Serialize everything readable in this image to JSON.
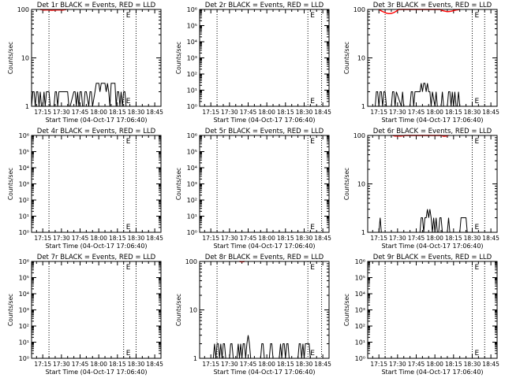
{
  "colors": {
    "events": "#000000",
    "lld": "#ff0000",
    "axes": "#000000",
    "background": "#ffffff"
  },
  "chart_data": [
    {
      "type": "line",
      "title": "Det 1r BLACK = Events, RED = LLD",
      "xlabel": "Start Time (04-Oct-17 17:06:40)",
      "ylabel": "Counts/sec",
      "yscale": "log",
      "ylim": [
        1,
        100
      ],
      "yticks": [
        "1",
        "10",
        "100"
      ],
      "xlim": [
        "17:06",
        "18:50"
      ],
      "xticks": [
        "17:15",
        "17:30",
        "17:45",
        "18:00",
        "18:15",
        "18:30",
        "18:45"
      ],
      "marker_label": "E",
      "vlines": [
        "17:20",
        "18:20",
        "18:30"
      ],
      "series": [
        {
          "name": "",
          "color": "events",
          "x": [
            "17:06",
            "17:07",
            "17:08",
            "17:09",
            "17:10",
            "17:11",
            "17:12",
            "17:13",
            "17:14",
            "17:15",
            "17:16",
            "17:17",
            "17:18",
            "17:19",
            "17:20",
            "17:21",
            "17:24",
            "17:25",
            "17:26",
            "17:27",
            "17:28",
            "17:29",
            "17:35",
            "17:36",
            "17:37",
            "17:40",
            "17:41",
            "17:42",
            "17:43",
            "17:44",
            "17:45",
            "17:46",
            "17:47",
            "17:48",
            "17:49",
            "17:50",
            "17:52",
            "17:53",
            "17:54",
            "17:55",
            "17:57",
            "17:58",
            "17:59",
            "18:00",
            "18:01",
            "18:02",
            "18:03",
            "18:04",
            "18:05",
            "18:06",
            "18:07",
            "18:08",
            "18:09",
            "18:10",
            "18:11",
            "18:12",
            "18:13",
            "18:14",
            "18:15",
            "18:16",
            "18:17",
            "18:18",
            "18:19",
            "18:20",
            "18:21",
            "18:22",
            "18:23",
            "18:24"
          ],
          "y": [
            1,
            2,
            2,
            1,
            2,
            2,
            1,
            2,
            1,
            1,
            2,
            1,
            2,
            2,
            2,
            1,
            1,
            2,
            2,
            1,
            2,
            2,
            2,
            1,
            1,
            2,
            2,
            1,
            2,
            1,
            2,
            2,
            1,
            1,
            2,
            2,
            1,
            2,
            2,
            1,
            2,
            3,
            3,
            3,
            2,
            3,
            3,
            3,
            3,
            2,
            3,
            2,
            1,
            3,
            3,
            3,
            3,
            1,
            2,
            2,
            1,
            2,
            1,
            2,
            2,
            1,
            1,
            1
          ]
        },
        {
          "name": "",
          "color": "lld",
          "x": [
            "17:13",
            "17:16",
            "17:19",
            "17:22",
            "17:25",
            "17:28",
            "17:31",
            "17:34"
          ],
          "y": [
            100,
            97,
            98,
            96,
            97,
            98,
            97,
            100
          ]
        }
      ]
    },
    {
      "type": "line",
      "title": "Det 2r BLACK = Events, RED = LLD",
      "xlabel": "Start Time (04-Oct-17 17:06:40)",
      "ylabel": "Counts/sec",
      "yscale": "log",
      "ylim": [
        1,
        1000000
      ],
      "yticks": [
        "10⁰",
        "10¹",
        "10²",
        "10³",
        "10⁴",
        "10⁵",
        "10⁶"
      ],
      "xlim": [
        "17:06",
        "18:50"
      ],
      "xticks": [
        "17:15",
        "17:30",
        "17:45",
        "18:00",
        "18:15",
        "18:30",
        "18:45"
      ],
      "marker_label": "E",
      "vlines": [
        "17:20",
        "18:33",
        "18:44"
      ],
      "series": []
    },
    {
      "type": "line",
      "title": "Det 3r BLACK = Events, RED = LLD",
      "xlabel": "Start Time (04-Oct-17 17:06:40)",
      "ylabel": "Counts/sec",
      "yscale": "log",
      "ylim": [
        1,
        100
      ],
      "yticks": [
        "1",
        "10",
        "100"
      ],
      "xlim": [
        "17:06",
        "18:50"
      ],
      "xticks": [
        "17:15",
        "17:30",
        "17:45",
        "18:00",
        "18:15",
        "18:30",
        "18:45"
      ],
      "marker_label": "E",
      "vlines": [
        "17:20",
        "18:30",
        "18:40"
      ],
      "series": [
        {
          "name": "",
          "color": "events",
          "x": [
            "17:12",
            "17:13",
            "17:14",
            "17:15",
            "17:16",
            "17:17",
            "17:18",
            "17:19",
            "17:20",
            "17:21",
            "17:25",
            "17:26",
            "17:27",
            "17:28",
            "17:29",
            "17:33",
            "17:34",
            "17:35",
            "17:40",
            "17:41",
            "17:42",
            "17:43",
            "17:44",
            "17:45",
            "17:46",
            "17:47",
            "17:48",
            "17:49",
            "17:50",
            "17:51",
            "17:52",
            "17:53",
            "17:54",
            "17:55",
            "17:56",
            "17:57",
            "17:58",
            "18:00",
            "18:01",
            "18:02",
            "18:05",
            "18:06",
            "18:07",
            "18:10",
            "18:11",
            "18:12",
            "18:13",
            "18:14",
            "18:15",
            "18:16",
            "18:17",
            "18:18",
            "18:19",
            "18:20"
          ],
          "y": [
            1,
            2,
            2,
            1,
            2,
            2,
            1,
            2,
            2,
            1,
            1,
            2,
            2,
            1,
            2,
            1,
            2,
            1,
            1,
            2,
            2,
            1,
            2,
            2,
            2,
            2,
            2,
            3,
            2,
            3,
            3,
            2,
            3,
            2,
            2,
            1,
            2,
            1,
            2,
            1,
            1,
            2,
            1,
            1,
            2,
            2,
            1,
            2,
            1,
            2,
            1,
            1,
            2,
            1
          ]
        },
        {
          "name": "",
          "color": "lld",
          "x": [
            "17:15",
            "17:17",
            "17:19",
            "17:21",
            "17:23",
            "17:25",
            "17:27",
            "17:29",
            "17:31",
            "18:04",
            "18:06",
            "18:08",
            "18:10",
            "18:12",
            "18:14",
            "18:16",
            "18:18",
            "18:20"
          ],
          "y": [
            100,
            93,
            88,
            84,
            82,
            83,
            86,
            92,
            100,
            100,
            95,
            92,
            90,
            91,
            93,
            96,
            98,
            100
          ]
        }
      ]
    },
    {
      "type": "line",
      "title": "Det 4r BLACK = Events, RED = LLD",
      "xlabel": "Start Time (04-Oct-17 17:06:40)",
      "ylabel": "Counts/sec",
      "yscale": "log",
      "ylim": [
        1,
        1000000
      ],
      "yticks": [
        "10⁰",
        "10¹",
        "10²",
        "10³",
        "10⁴",
        "10⁵",
        "10⁶"
      ],
      "xlim": [
        "17:06",
        "18:50"
      ],
      "xticks": [
        "17:15",
        "17:30",
        "17:45",
        "18:00",
        "18:15",
        "18:30",
        "18:45"
      ],
      "marker_label": "E",
      "vlines": [
        "17:20",
        "18:20",
        "18:30"
      ],
      "series": []
    },
    {
      "type": "line",
      "title": "Det 5r BLACK = Events, RED = LLD",
      "xlabel": "Start Time (04-Oct-17 17:06:40)",
      "ylabel": "Counts/sec",
      "yscale": "log",
      "ylim": [
        1,
        1000000
      ],
      "yticks": [
        "10⁰",
        "10¹",
        "10²",
        "10³",
        "10⁴",
        "10⁵",
        "10⁶"
      ],
      "xlim": [
        "17:06",
        "18:50"
      ],
      "xticks": [
        "17:15",
        "17:30",
        "17:45",
        "18:00",
        "18:15",
        "18:30",
        "18:45"
      ],
      "marker_label": "E",
      "vlines": [
        "17:20",
        "18:33",
        "18:44"
      ],
      "series": []
    },
    {
      "type": "line",
      "title": "Det 6r BLACK = Events, RED = LLD",
      "xlabel": "Start Time (04-Oct-17 17:06:40)",
      "ylabel": "Counts/sec",
      "yscale": "log",
      "ylim": [
        1,
        100
      ],
      "yticks": [
        "1",
        "10",
        "100"
      ],
      "xlim": [
        "17:06",
        "18:50"
      ],
      "xticks": [
        "17:15",
        "17:30",
        "17:45",
        "18:00",
        "18:15",
        "18:30",
        "18:45"
      ],
      "marker_label": "E",
      "vlines": [
        "17:20",
        "18:30",
        "18:40"
      ],
      "series": [
        {
          "name": "",
          "color": "events",
          "x": [
            "17:15",
            "17:16",
            "17:17",
            "17:48",
            "17:49",
            "17:50",
            "17:51",
            "17:52",
            "17:53",
            "17:54",
            "17:55",
            "17:56",
            "17:57",
            "17:58",
            "17:59",
            "18:00",
            "18:01",
            "18:02",
            "18:03",
            "18:04",
            "18:05",
            "18:06",
            "18:10",
            "18:11",
            "18:12",
            "18:20",
            "18:21",
            "18:22",
            "18:23",
            "18:24",
            "18:25",
            "18:26"
          ],
          "y": [
            1,
            2,
            1,
            1,
            2,
            2,
            1,
            2,
            2,
            3,
            2,
            3,
            2,
            1,
            2,
            1,
            2,
            1,
            1,
            2,
            2,
            1,
            1,
            2,
            1,
            1,
            2,
            2,
            2,
            2,
            2,
            1
          ]
        },
        {
          "name": "",
          "color": "lld",
          "x": [
            "17:26",
            "17:28",
            "17:30",
            "17:32",
            "17:34",
            "17:36",
            "18:05",
            "18:07",
            "18:09",
            "18:11"
          ],
          "y": [
            100,
            97,
            98,
            97,
            98,
            100,
            100,
            96,
            97,
            100
          ]
        }
      ]
    },
    {
      "type": "line",
      "title": "Det 7r BLACK = Events, RED = LLD",
      "xlabel": "Start Time (04-Oct-17 17:06:40)",
      "ylabel": "Counts/sec",
      "yscale": "log",
      "ylim": [
        1,
        1000000
      ],
      "yticks": [
        "10⁰",
        "10¹",
        "10²",
        "10³",
        "10⁴",
        "10⁵",
        "10⁶"
      ],
      "xlim": [
        "17:06",
        "18:50"
      ],
      "xticks": [
        "17:15",
        "17:30",
        "17:45",
        "18:00",
        "18:15",
        "18:30",
        "18:45"
      ],
      "marker_label": "E",
      "vlines": [
        "17:20",
        "18:20",
        "18:30"
      ],
      "series": []
    },
    {
      "type": "line",
      "title": "Det 8r BLACK = Events, RED = LLD",
      "xlabel": "Start Time (04-Oct-17 17:06:40)",
      "ylabel": "Counts/sec",
      "yscale": "log",
      "ylim": [
        1,
        100
      ],
      "yticks": [
        "1",
        "10",
        "100"
      ],
      "xlim": [
        "17:06",
        "18:50"
      ],
      "xticks": [
        "17:15",
        "17:30",
        "17:45",
        "18:00",
        "18:15",
        "18:30",
        "18:45"
      ],
      "marker_label": "E",
      "vlines": [
        "17:20",
        "18:33",
        "18:44"
      ],
      "series": [
        {
          "name": "",
          "color": "events",
          "x": [
            "17:17",
            "17:18",
            "17:19",
            "17:20",
            "17:21",
            "17:22",
            "17:23",
            "17:24",
            "17:25",
            "17:26",
            "17:27",
            "17:30",
            "17:31",
            "17:32",
            "17:33",
            "17:36",
            "17:37",
            "17:38",
            "17:39",
            "17:40",
            "17:41",
            "17:42",
            "17:43",
            "17:44",
            "17:45",
            "17:46",
            "17:47",
            "17:48",
            "17:55",
            "17:56",
            "17:57",
            "17:58",
            "18:02",
            "18:03",
            "18:04",
            "18:05",
            "18:10",
            "18:11",
            "18:12",
            "18:13",
            "18:14",
            "18:15",
            "18:16",
            "18:17",
            "18:18",
            "18:25",
            "18:26",
            "18:27",
            "18:28",
            "18:29",
            "18:30",
            "18:31",
            "18:32",
            "18:33",
            "18:34",
            "18:35"
          ],
          "y": [
            1,
            2,
            1,
            2,
            2,
            1,
            2,
            1,
            2,
            2,
            1,
            1,
            2,
            2,
            1,
            1,
            2,
            1,
            2,
            1,
            2,
            2,
            1,
            2,
            3,
            2,
            1,
            1,
            1,
            2,
            2,
            1,
            1,
            2,
            2,
            1,
            1,
            2,
            1,
            2,
            2,
            1,
            2,
            2,
            1,
            1,
            2,
            2,
            1,
            2,
            1,
            2,
            2,
            2,
            2,
            1
          ]
        },
        {
          "name": "",
          "color": "lld",
          "x": [
            "17:38",
            "17:40",
            "17:42"
          ],
          "y": [
            100,
            98,
            100
          ]
        }
      ]
    },
    {
      "type": "line",
      "title": "Det 9r BLACK = Events, RED = LLD",
      "xlabel": "Start Time (04-Oct-17 17:06:40)",
      "ylabel": "Counts/sec",
      "yscale": "log",
      "ylim": [
        1,
        1000000
      ],
      "yticks": [
        "10⁰",
        "10¹",
        "10²",
        "10³",
        "10⁴",
        "10⁵",
        "10⁶"
      ],
      "xlim": [
        "17:06",
        "18:50"
      ],
      "xticks": [
        "17:15",
        "17:30",
        "17:45",
        "18:00",
        "18:15",
        "18:30",
        "18:45"
      ],
      "marker_label": "E",
      "vlines": [
        "17:20",
        "18:30",
        "18:40"
      ],
      "series": []
    }
  ]
}
